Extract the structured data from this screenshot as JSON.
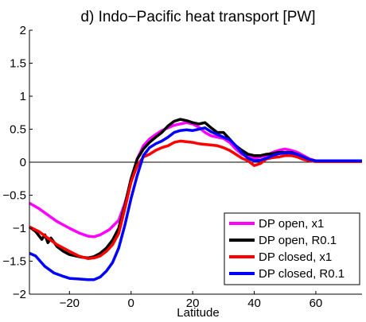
{
  "chart_data": {
    "type": "line",
    "title": "d) Indo−Pacific heat transport [PW]",
    "xlabel": "Latitude",
    "ylabel": "",
    "xlim": [
      -33,
      75
    ],
    "ylim": [
      -2,
      2
    ],
    "xticks": [
      -20,
      0,
      20,
      40,
      60
    ],
    "xtick_labels": [
      "−20",
      "0",
      "20",
      "40",
      "60"
    ],
    "yticks": [
      -2,
      -1.5,
      -1,
      -0.5,
      0,
      0.5,
      1,
      1.5,
      2
    ],
    "ytick_labels": [
      "−2",
      "−1.5",
      "−1",
      "−0.5",
      "0",
      "0.5",
      "1",
      "1.5",
      "2"
    ],
    "zero_line": true,
    "grid": false,
    "legend_position": "bottom-right",
    "series": [
      {
        "name": "DP open, x1",
        "color": "#ff00ff",
        "points": [
          [
            -33,
            -0.62
          ],
          [
            -30,
            -0.7
          ],
          [
            -27,
            -0.8
          ],
          [
            -24,
            -0.9
          ],
          [
            -20,
            -1.0
          ],
          [
            -17,
            -1.07
          ],
          [
            -14,
            -1.12
          ],
          [
            -12,
            -1.13
          ],
          [
            -10,
            -1.1
          ],
          [
            -7,
            -1.02
          ],
          [
            -4,
            -0.88
          ],
          [
            -2,
            -0.62
          ],
          [
            0,
            -0.3
          ],
          [
            2,
            0.05
          ],
          [
            4,
            0.25
          ],
          [
            6,
            0.35
          ],
          [
            8,
            0.42
          ],
          [
            10,
            0.48
          ],
          [
            12,
            0.52
          ],
          [
            14,
            0.56
          ],
          [
            16,
            0.58
          ],
          [
            18,
            0.6
          ],
          [
            20,
            0.58
          ],
          [
            22,
            0.53
          ],
          [
            24,
            0.45
          ],
          [
            26,
            0.4
          ],
          [
            28,
            0.38
          ],
          [
            30,
            0.36
          ],
          [
            32,
            0.3
          ],
          [
            34,
            0.2
          ],
          [
            36,
            0.12
          ],
          [
            38,
            0.08
          ],
          [
            40,
            0.06
          ],
          [
            42,
            0.08
          ],
          [
            44,
            0.1
          ],
          [
            46,
            0.15
          ],
          [
            48,
            0.18
          ],
          [
            50,
            0.2
          ],
          [
            52,
            0.18
          ],
          [
            54,
            0.15
          ],
          [
            56,
            0.1
          ],
          [
            58,
            0.05
          ],
          [
            60,
            0.02
          ],
          [
            65,
            0.02
          ],
          [
            70,
            0.02
          ],
          [
            75,
            0.02
          ]
        ]
      },
      {
        "name": "DP open, R0.1",
        "color": "#000000",
        "points": [
          [
            -33,
            -0.98
          ],
          [
            -31,
            -1.05
          ],
          [
            -29,
            -1.17
          ],
          [
            -28,
            -1.1
          ],
          [
            -27,
            -1.22
          ],
          [
            -26,
            -1.15
          ],
          [
            -24,
            -1.28
          ],
          [
            -22,
            -1.35
          ],
          [
            -20,
            -1.4
          ],
          [
            -18,
            -1.42
          ],
          [
            -16,
            -1.44
          ],
          [
            -14,
            -1.45
          ],
          [
            -12,
            -1.43
          ],
          [
            -10,
            -1.38
          ],
          [
            -8,
            -1.3
          ],
          [
            -6,
            -1.18
          ],
          [
            -4,
            -1.0
          ],
          [
            -2,
            -0.65
          ],
          [
            0,
            -0.25
          ],
          [
            2,
            0.05
          ],
          [
            4,
            0.2
          ],
          [
            6,
            0.3
          ],
          [
            8,
            0.38
          ],
          [
            10,
            0.45
          ],
          [
            12,
            0.55
          ],
          [
            14,
            0.62
          ],
          [
            16,
            0.65
          ],
          [
            18,
            0.63
          ],
          [
            20,
            0.6
          ],
          [
            22,
            0.58
          ],
          [
            24,
            0.6
          ],
          [
            26,
            0.52
          ],
          [
            28,
            0.45
          ],
          [
            30,
            0.45
          ],
          [
            32,
            0.35
          ],
          [
            34,
            0.25
          ],
          [
            36,
            0.18
          ],
          [
            38,
            0.12
          ],
          [
            40,
            0.1
          ],
          [
            42,
            0.1
          ],
          [
            44,
            0.12
          ],
          [
            46,
            0.13
          ],
          [
            48,
            0.15
          ],
          [
            50,
            0.15
          ],
          [
            52,
            0.15
          ],
          [
            54,
            0.12
          ],
          [
            56,
            0.08
          ],
          [
            58,
            0.04
          ],
          [
            60,
            0.02
          ],
          [
            65,
            0.02
          ],
          [
            70,
            0.02
          ],
          [
            75,
            0.02
          ]
        ]
      },
      {
        "name": "DP closed, x1",
        "color": "#ff0000",
        "points": [
          [
            -33,
            -0.98
          ],
          [
            -30,
            -1.05
          ],
          [
            -27,
            -1.15
          ],
          [
            -24,
            -1.25
          ],
          [
            -20,
            -1.35
          ],
          [
            -17,
            -1.42
          ],
          [
            -14,
            -1.46
          ],
          [
            -12,
            -1.45
          ],
          [
            -10,
            -1.42
          ],
          [
            -8,
            -1.35
          ],
          [
            -6,
            -1.25
          ],
          [
            -4,
            -1.08
          ],
          [
            -2,
            -0.7
          ],
          [
            0,
            -0.3
          ],
          [
            2,
            -0.05
          ],
          [
            4,
            0.08
          ],
          [
            6,
            0.12
          ],
          [
            8,
            0.18
          ],
          [
            10,
            0.22
          ],
          [
            12,
            0.25
          ],
          [
            14,
            0.3
          ],
          [
            16,
            0.32
          ],
          [
            18,
            0.31
          ],
          [
            20,
            0.3
          ],
          [
            22,
            0.28
          ],
          [
            24,
            0.27
          ],
          [
            26,
            0.26
          ],
          [
            28,
            0.25
          ],
          [
            30,
            0.22
          ],
          [
            32,
            0.18
          ],
          [
            34,
            0.12
          ],
          [
            36,
            0.06
          ],
          [
            38,
            0.02
          ],
          [
            40,
            -0.05
          ],
          [
            42,
            -0.02
          ],
          [
            44,
            0.05
          ],
          [
            46,
            0.07
          ],
          [
            48,
            0.08
          ],
          [
            50,
            0.1
          ],
          [
            52,
            0.1
          ],
          [
            54,
            0.08
          ],
          [
            56,
            0.04
          ],
          [
            58,
            0.02
          ],
          [
            60,
            0.01
          ],
          [
            65,
            0.01
          ],
          [
            70,
            0.01
          ],
          [
            75,
            0.01
          ]
        ]
      },
      {
        "name": "DP closed, R0.1",
        "color": "#0000ff",
        "points": [
          [
            -33,
            -1.38
          ],
          [
            -31,
            -1.42
          ],
          [
            -28,
            -1.58
          ],
          [
            -25,
            -1.68
          ],
          [
            -22,
            -1.73
          ],
          [
            -20,
            -1.76
          ],
          [
            -17,
            -1.77
          ],
          [
            -14,
            -1.78
          ],
          [
            -12,
            -1.78
          ],
          [
            -10,
            -1.74
          ],
          [
            -8,
            -1.65
          ],
          [
            -6,
            -1.52
          ],
          [
            -4,
            -1.3
          ],
          [
            -2,
            -0.95
          ],
          [
            0,
            -0.55
          ],
          [
            2,
            -0.2
          ],
          [
            4,
            0.1
          ],
          [
            6,
            0.22
          ],
          [
            8,
            0.28
          ],
          [
            10,
            0.32
          ],
          [
            12,
            0.38
          ],
          [
            14,
            0.45
          ],
          [
            16,
            0.48
          ],
          [
            18,
            0.49
          ],
          [
            20,
            0.48
          ],
          [
            22,
            0.5
          ],
          [
            24,
            0.52
          ],
          [
            26,
            0.46
          ],
          [
            28,
            0.42
          ],
          [
            30,
            0.38
          ],
          [
            32,
            0.34
          ],
          [
            34,
            0.25
          ],
          [
            36,
            0.14
          ],
          [
            38,
            0.06
          ],
          [
            40,
            0.02
          ],
          [
            42,
            0.03
          ],
          [
            44,
            0.06
          ],
          [
            46,
            0.1
          ],
          [
            48,
            0.13
          ],
          [
            50,
            0.14
          ],
          [
            52,
            0.14
          ],
          [
            54,
            0.12
          ],
          [
            56,
            0.08
          ],
          [
            58,
            0.04
          ],
          [
            60,
            0.02
          ],
          [
            65,
            0.02
          ],
          [
            70,
            0.02
          ],
          [
            75,
            0.02
          ]
        ]
      }
    ]
  }
}
